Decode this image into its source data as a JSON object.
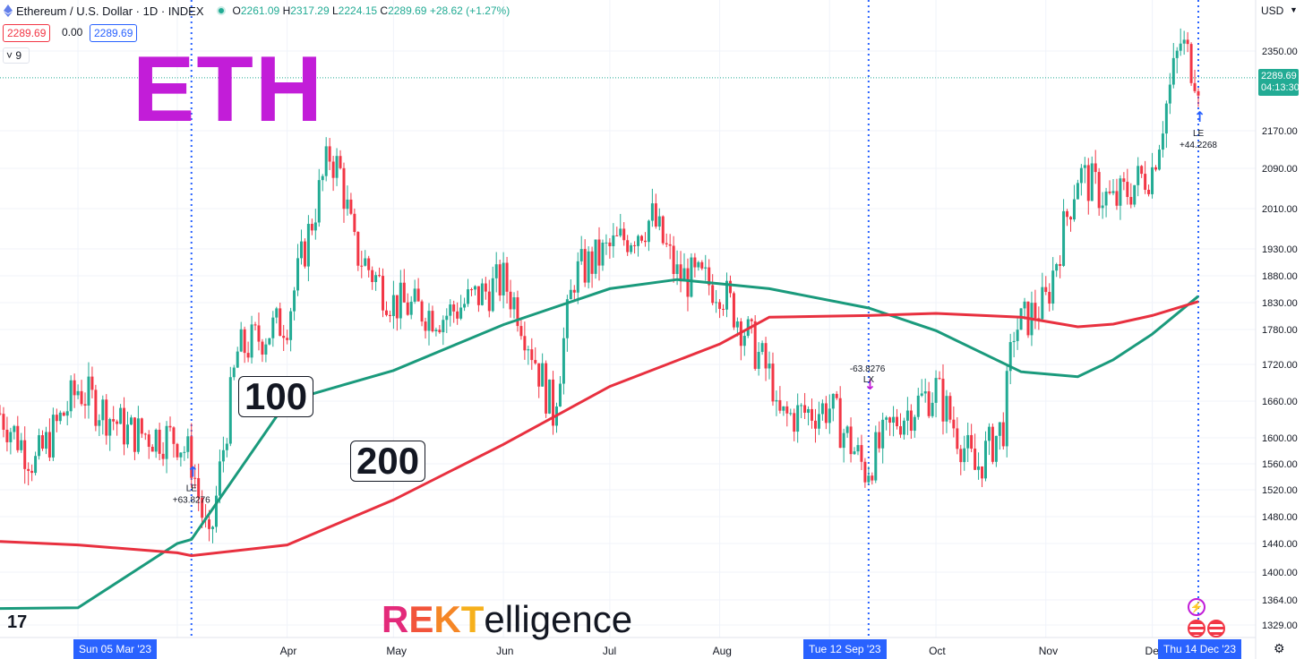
{
  "header": {
    "symbol": "Ethereum / U.S. Dollar · 1D · INDEX",
    "o_key": "O",
    "o_val": "2261.09",
    "h_key": "H",
    "h_val": "2317.29",
    "l_key": "L",
    "l_val": "2224.15",
    "c_key": "C",
    "c_val": "2289.69",
    "change": "+28.62 (+1.27%)",
    "bid": "2289.69",
    "spread": "0.00",
    "ask": "2289.69",
    "indicator_toggle": "9"
  },
  "overlay": {
    "title": "ETH",
    "ma100_label": "100",
    "ma200_label": "200",
    "logo_rekt_letters": [
      "R",
      "E",
      "K",
      "T"
    ],
    "logo_rest": "elligence"
  },
  "price_axis": {
    "currency": "USD",
    "ticks": [
      "2350.00",
      "2170.00",
      "2090.00",
      "2010.00",
      "1930.00",
      "1880.00",
      "1830.00",
      "1780.00",
      "1720.00",
      "1660.00",
      "1600.00",
      "1560.00",
      "1520.00",
      "1480.00",
      "1440.00",
      "1400.00",
      "1364.00",
      "1329.00"
    ],
    "last_price": "2289.69",
    "countdown": "04:13:30"
  },
  "time_axis": {
    "months": [
      "Apr",
      "May",
      "Jun",
      "Jul",
      "Aug",
      "Se",
      "Oct",
      "Nov",
      "Dec"
    ],
    "crosshair_dates": [
      "Sun 05 Mar '23",
      "Tue 12 Sep '23",
      "Thu 14 Dec '23"
    ]
  },
  "trade_marks": [
    {
      "label": "LE",
      "value": "+63.8276"
    },
    {
      "label": "LX",
      "value": "-63.8276"
    },
    {
      "label": "LE",
      "value": "+44.2268"
    }
  ],
  "colors": {
    "up": "#22ab94",
    "down": "#f23645",
    "ma100": "#1a9a7c",
    "ma200": "#e8303f",
    "title": "#c21dd8",
    "crosshair": "#2962ff"
  },
  "chart_data": {
    "type": "candlestick",
    "title": "",
    "x_range": [
      "2023-01-10",
      "2023-12-14"
    ],
    "ylim": [
      1300,
      2410
    ],
    "y_scale": "log",
    "grid": true,
    "series": [
      {
        "name": "100",
        "type": "line",
        "x": [
          "2023-01-10",
          "2023-02-01",
          "2023-03-01",
          "2023-03-05",
          "2023-04-01",
          "2023-05-01",
          "2023-06-01",
          "2023-07-01",
          "2023-07-20",
          "2023-08-15",
          "2023-09-12",
          "2023-10-01",
          "2023-10-25",
          "2023-11-10",
          "2023-11-20",
          "2023-12-01",
          "2023-12-14"
        ],
        "values": [
          1352,
          1353,
          1440,
          1446,
          1660,
          1710,
          1789,
          1856,
          1873,
          1856,
          1820,
          1778,
          1708,
          1700,
          1728,
          1772,
          1842
        ]
      },
      {
        "name": "200",
        "type": "line",
        "x": [
          "2023-01-10",
          "2023-02-01",
          "2023-03-01",
          "2023-03-05",
          "2023-04-01",
          "2023-05-01",
          "2023-06-01",
          "2023-07-01",
          "2023-08-01",
          "2023-08-15",
          "2023-09-12",
          "2023-10-01",
          "2023-10-25",
          "2023-11-10",
          "2023-11-20",
          "2023-12-01",
          "2023-12-14"
        ],
        "values": [
          1443,
          1438,
          1427,
          1423,
          1438,
          1505,
          1590,
          1684,
          1755,
          1803,
          1806,
          1810,
          1803,
          1785,
          1790,
          1806,
          1832
        ]
      }
    ],
    "ohlc_anchors": {
      "dates": [
        "2023-01-10",
        "2023-01-20",
        "2023-02-01",
        "2023-02-15",
        "2023-03-01",
        "2023-03-05",
        "2023-03-10",
        "2023-03-18",
        "2023-04-01",
        "2023-04-13",
        "2023-04-16",
        "2023-04-20",
        "2023-05-01",
        "2023-05-15",
        "2023-06-01",
        "2023-06-05",
        "2023-06-15",
        "2023-06-21",
        "2023-07-01",
        "2023-07-13",
        "2023-07-20",
        "2023-08-01",
        "2023-08-16",
        "2023-08-17",
        "2023-09-01",
        "2023-09-11",
        "2023-09-20",
        "2023-10-01",
        "2023-10-12",
        "2023-10-20",
        "2023-10-23",
        "2023-11-01",
        "2023-11-10",
        "2023-11-20",
        "2023-12-01",
        "2023-12-09",
        "2023-12-14"
      ],
      "close": [
        1640,
        1560,
        1680,
        1610,
        1600,
        1565,
        1430,
        1740,
        1800,
        2120,
        2080,
        1930,
        1830,
        1805,
        1870,
        1820,
        1640,
        1880,
        1930,
        1990,
        1880,
        1860,
        1690,
        1630,
        1650,
        1550,
        1630,
        1680,
        1550,
        1620,
        1780,
        1830,
        2080,
        2020,
        2090,
        2370,
        2289.69
      ]
    },
    "last_candle": {
      "date": "2023-12-14",
      "open": 2261.09,
      "high": 2317.29,
      "low": 2224.15,
      "close": 2289.69
    }
  }
}
